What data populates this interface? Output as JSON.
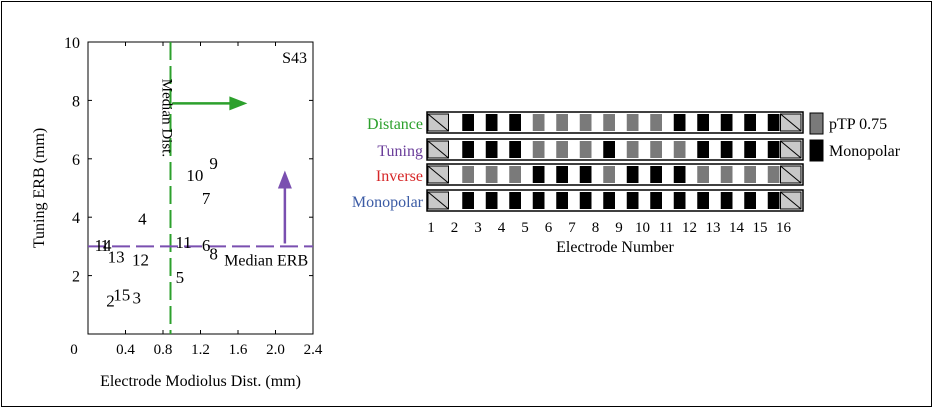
{
  "chart_data": [
    {
      "type": "scatter",
      "xlabel": "Electrode Modiolus Dist. (mm)",
      "ylabel": "Tuning ERB (mm)",
      "xlim": [
        0,
        2.4
      ],
      "ylim": [
        0,
        10
      ],
      "xticks": [
        "0",
        "0.4",
        "0.8",
        "1.2",
        "1.6",
        "2.0",
        "2.4"
      ],
      "yticks": [
        "2",
        "4",
        "6",
        "8",
        "10"
      ],
      "subject_label": "S43",
      "points": [
        {
          "label": "1",
          "x": 0.18,
          "y": 3.05
        },
        {
          "label": "2",
          "x": 0.24,
          "y": 1.15
        },
        {
          "label": "3",
          "x": 0.52,
          "y": 1.25
        },
        {
          "label": "4",
          "x": 0.58,
          "y": 3.95
        },
        {
          "label": "5",
          "x": 0.98,
          "y": 1.95
        },
        {
          "label": "6",
          "x": 1.26,
          "y": 3.05
        },
        {
          "label": "7",
          "x": 1.26,
          "y": 4.65
        },
        {
          "label": "8",
          "x": 1.34,
          "y": 2.75
        },
        {
          "label": "9",
          "x": 1.34,
          "y": 5.85
        },
        {
          "label": "10",
          "x": 1.14,
          "y": 5.45
        },
        {
          "label": "11",
          "x": 1.02,
          "y": 3.15
        },
        {
          "label": "12",
          "x": 0.56,
          "y": 2.55
        },
        {
          "label": "13",
          "x": 0.3,
          "y": 2.65
        },
        {
          "label": "14",
          "x": 0.16,
          "y": 3.05
        },
        {
          "label": "15",
          "x": 0.36,
          "y": 1.35
        }
      ],
      "median_dist": {
        "label": "Median Dist.",
        "x": 0.88,
        "color": "#2ca02c"
      },
      "median_erb": {
        "label": "Median ERB",
        "y": 3.0,
        "color": "#7a4fb0"
      },
      "right_arrow": {
        "from_x": 0.9,
        "to_x": 1.7,
        "y": 7.9
      },
      "up_arrow": {
        "x": 2.1,
        "from_y": 3.1,
        "to_y": 5.6
      }
    },
    {
      "type": "table",
      "xlabel": "Electrode Number",
      "electrodes": [
        "1",
        "2",
        "3",
        "4",
        "5",
        "6",
        "7",
        "8",
        "9",
        "10",
        "11",
        "12",
        "13",
        "14",
        "15",
        "16"
      ],
      "rows": [
        {
          "name": "Distance",
          "color": "#2ca02c",
          "modes": [
            "X",
            "M",
            "M",
            "M",
            "P",
            "P",
            "P",
            "P",
            "P",
            "P",
            "M",
            "M",
            "M",
            "M",
            "M",
            "X"
          ]
        },
        {
          "name": "Tuning",
          "color": "#6a3d9a",
          "modes": [
            "X",
            "M",
            "M",
            "M",
            "P",
            "P",
            "P",
            "M",
            "P",
            "P",
            "P",
            "M",
            "M",
            "M",
            "M",
            "X"
          ]
        },
        {
          "name": "Inverse",
          "color": "#d62728",
          "modes": [
            "X",
            "P",
            "P",
            "P",
            "M",
            "M",
            "M",
            "P",
            "M",
            "M",
            "M",
            "P",
            "P",
            "P",
            "P",
            "X"
          ]
        },
        {
          "name": "Monopolar",
          "color": "#3b5ba5",
          "modes": [
            "X",
            "M",
            "M",
            "M",
            "M",
            "M",
            "M",
            "M",
            "M",
            "M",
            "M",
            "M",
            "M",
            "M",
            "M",
            "X"
          ]
        }
      ],
      "legend": [
        {
          "label": "pTP 0.75",
          "color": "#7a7a7a"
        },
        {
          "label": "Monopolar",
          "color": "#000000"
        }
      ]
    }
  ]
}
